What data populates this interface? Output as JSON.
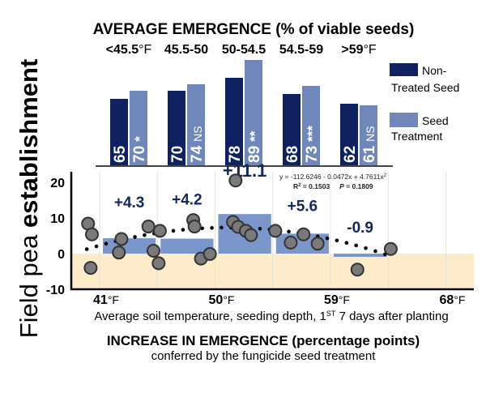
{
  "chart_data": [
    {
      "type": "bar",
      "title": "AVERAGE EMERGENCE (% of viable seeds)",
      "categories": [
        "<45.5",
        "45.5-50",
        "50-54.5",
        "54.5-59",
        ">59"
      ],
      "category_units": [
        "°F",
        "",
        "",
        "",
        "°F"
      ],
      "series": [
        {
          "name": "Non-Treated Seed",
          "legend_lines": [
            "Non-",
            "Treated Seed"
          ],
          "color": "#0f2160",
          "values": [
            65,
            70,
            78,
            68,
            62
          ]
        },
        {
          "name": "Seed Treatment",
          "legend_lines": [
            "Seed",
            "Treatment"
          ],
          "color": "#6f87bb",
          "values": [
            70,
            74,
            89,
            73,
            61
          ],
          "significance": [
            "*",
            "NS",
            "**",
            "***",
            "NS"
          ]
        }
      ],
      "legend": "right"
    },
    {
      "type": "scatter",
      "ylabel_parts": [
        "Field pea ",
        "establishment"
      ],
      "xlabel": "Average soil temperature, seeding depth, 1",
      "xlabel_sup": "ST",
      "xlabel_end": " 7 days after planting",
      "title": "INCREASE IN EMERGENCE (percentage points)",
      "subtitle": "conferred by the fungicide seed treatment",
      "xlim": [
        38.5,
        70
      ],
      "ylim": [
        -10,
        22
      ],
      "yticks": [
        20,
        10,
        0,
        -10
      ],
      "xticks": [
        41,
        50,
        59,
        68
      ],
      "xtick_unit": "°F",
      "bins": [
        {
          "from": 41,
          "to": 45.5,
          "value": 4.3,
          "label": "+4.3"
        },
        {
          "from": 45.5,
          "to": 50,
          "value": 4.2,
          "label": "+4.2"
        },
        {
          "from": 50,
          "to": 54.5,
          "value": 11.1,
          "label": "+11.1"
        },
        {
          "from": 54.5,
          "to": 59,
          "value": 5.6,
          "label": "+5.6"
        },
        {
          "from": 59,
          "to": 63.5,
          "value": -0.9,
          "label": "-0.9"
        }
      ],
      "points": [
        [
          40.1,
          8.4
        ],
        [
          40.4,
          5.4
        ],
        [
          40.3,
          -4.0
        ],
        [
          42.7,
          4.1
        ],
        [
          42.5,
          0.3
        ],
        [
          44.8,
          7.6
        ],
        [
          45.2,
          0.8
        ],
        [
          45.6,
          -2.7
        ],
        [
          45.7,
          6.4
        ],
        [
          48.3,
          9.4
        ],
        [
          48.4,
          7.6
        ],
        [
          48.9,
          -1.4
        ],
        [
          49.6,
          -0.1
        ],
        [
          51.6,
          20.5
        ],
        [
          51.4,
          8.9
        ],
        [
          51.8,
          7.5
        ],
        [
          52.4,
          6.4
        ],
        [
          52.8,
          5.2
        ],
        [
          54.7,
          6.4
        ],
        [
          55.9,
          3.1
        ],
        [
          56.9,
          5.4
        ],
        [
          58.0,
          2.8
        ],
        [
          61.1,
          -4.5
        ],
        [
          63.7,
          1.3
        ]
      ],
      "trend": {
        "type": "quadratic",
        "equation": "y = -112.6246 - 0.0472x + 4.7611x",
        "equation_sup": "2",
        "r2_label": "R",
        "r2_sup": "2",
        "r2_value": " = 0.1503",
        "p_label": "P",
        "p_value": " = 0.1809",
        "display_vertex": [
          51,
          7.3
        ],
        "display_a": -0.05,
        "x_range": [
          40,
          63.7
        ]
      },
      "colors": {
        "bar": "#7b96cb",
        "negative_zone": "#fdebc9",
        "point": "#7a7a7a",
        "label": "#13285f"
      }
    }
  ]
}
